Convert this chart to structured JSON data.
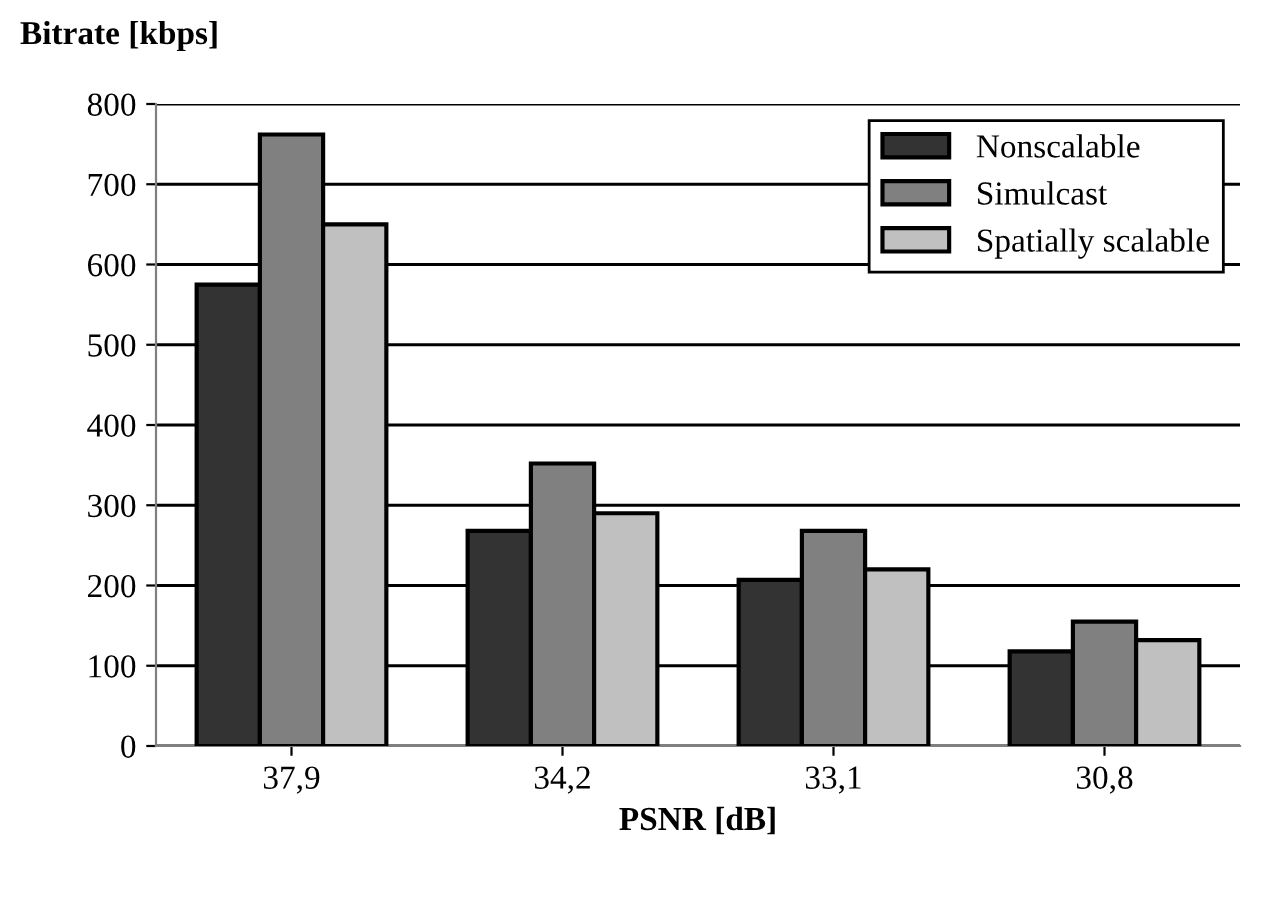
{
  "chart_data": {
    "type": "bar",
    "xlabel": "PSNR [dB]",
    "ylabel": "Bitrate [kbps]",
    "categories": [
      "37,9",
      "34,2",
      "33,1",
      "30,8"
    ],
    "series": [
      {
        "name": "Nonscalable",
        "color": "#333333",
        "values": [
          575,
          268,
          207,
          118
        ]
      },
      {
        "name": "Simulcast",
        "color": "#808080",
        "values": [
          762,
          352,
          268,
          155
        ]
      },
      {
        "name": "Spatially scalable",
        "color": "#c0c0c0",
        "values": [
          650,
          290,
          220,
          132
        ]
      }
    ],
    "ylim": [
      0,
      800
    ],
    "yticks": [
      0,
      100,
      200,
      300,
      400,
      500,
      600,
      700,
      800
    ],
    "grid": "y",
    "legend": "top right"
  }
}
